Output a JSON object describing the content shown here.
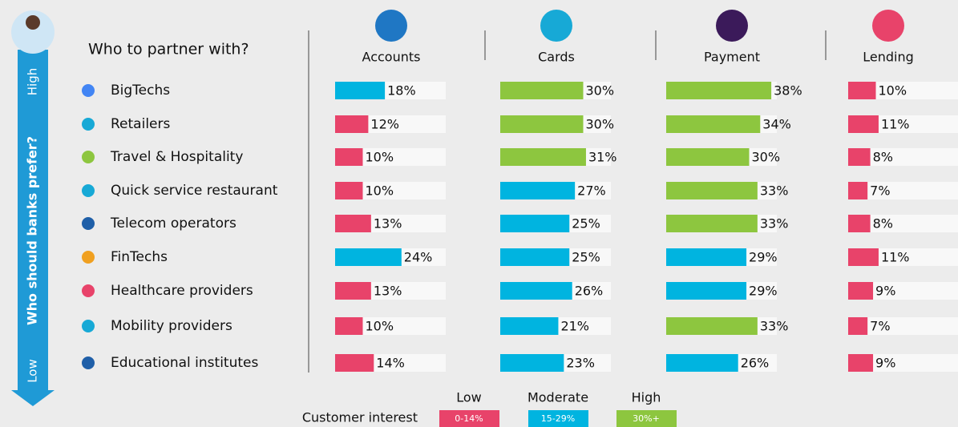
{
  "chart_data": {
    "type": "bar",
    "title": "Who to partner with?",
    "y_axis": {
      "label": "Who should banks prefer?",
      "high": "High",
      "low": "Low"
    },
    "categories": [
      "BigTechs",
      "Retailers",
      "Travel & Hospitality",
      "Quick service restaurant",
      "Telecom operators",
      "FinTechs",
      "Healthcare providers",
      "Mobility providers",
      "Educational institutes"
    ],
    "xlim": [
      0,
      40
    ],
    "series": [
      {
        "name": "Accounts",
        "values": [
          18,
          12,
          10,
          10,
          13,
          24,
          13,
          10,
          14
        ],
        "value_labels": [
          "18%",
          "12%",
          "10%",
          "10%",
          "13%",
          "24%",
          "13%",
          "10%",
          "14%"
        ],
        "colors": [
          "#00b4e0",
          "#e8436a",
          "#e8436a",
          "#e8436a",
          "#e8436a",
          "#00b4e0",
          "#e8436a",
          "#e8436a",
          "#e8436a"
        ]
      },
      {
        "name": "Cards",
        "values": [
          30,
          30,
          31,
          27,
          25,
          25,
          26,
          21,
          23
        ],
        "value_labels": [
          "30%",
          "30%",
          "31%",
          "27%",
          "25%",
          "25%",
          "26%",
          "21%",
          "23%"
        ],
        "colors": [
          "#8dc63f",
          "#8dc63f",
          "#8dc63f",
          "#00b4e0",
          "#00b4e0",
          "#00b4e0",
          "#00b4e0",
          "#00b4e0",
          "#00b4e0"
        ]
      },
      {
        "name": "Payment",
        "values": [
          38,
          34,
          30,
          33,
          33,
          29,
          29,
          33,
          26
        ],
        "value_labels": [
          "38%",
          "34%",
          "30%",
          "33%",
          "33%",
          "29%",
          "29%",
          "33%",
          "26%"
        ],
        "colors": [
          "#8dc63f",
          "#8dc63f",
          "#8dc63f",
          "#8dc63f",
          "#8dc63f",
          "#00b4e0",
          "#00b4e0",
          "#8dc63f",
          "#00b4e0"
        ]
      },
      {
        "name": "Lending",
        "values": [
          10,
          11,
          8,
          7,
          8,
          11,
          9,
          7,
          9
        ],
        "value_labels": [
          "10%",
          "11%",
          "8%",
          "7%",
          "8%",
          "11%",
          "9%",
          "7%",
          "9%"
        ],
        "colors": [
          "#e8436a",
          "#e8436a",
          "#e8436a",
          "#e8436a",
          "#e8436a",
          "#e8436a",
          "#e8436a",
          "#e8436a",
          "#e8436a"
        ]
      }
    ],
    "legend": {
      "title": "Customer interest",
      "items": [
        {
          "name": "Low",
          "label": "0-14%",
          "color": "#e8436a"
        },
        {
          "name": "Moderate",
          "label": "15-29%",
          "color": "#00b4e0"
        },
        {
          "name": "High",
          "label": "30%+",
          "color": "#8dc63f"
        }
      ]
    }
  }
}
